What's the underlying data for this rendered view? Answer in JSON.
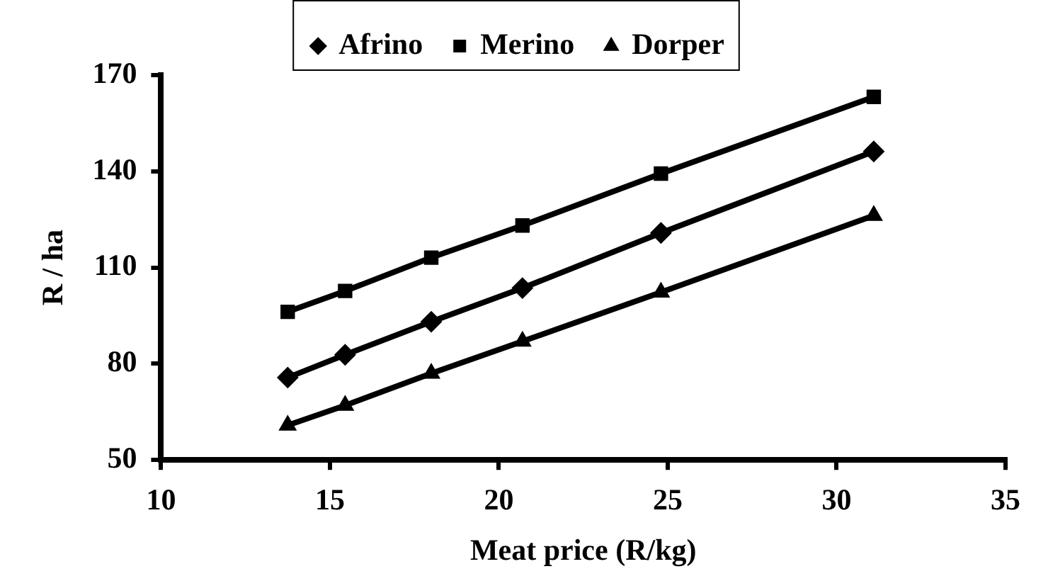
{
  "chart_data": {
    "type": "line",
    "xlabel": "Meat price (R/kg)",
    "ylabel": "R / ha",
    "xlim": [
      10,
      35
    ],
    "xticks": [
      10,
      15,
      20,
      25,
      30,
      35
    ],
    "ylim": [
      50,
      170
    ],
    "yticks": [
      50,
      80,
      110,
      140,
      170
    ],
    "x": [
      13.75,
      15.45,
      18,
      20.7,
      24.8,
      31.1
    ],
    "series": [
      {
        "name": "Afrino",
        "color": "#000000",
        "marker": "diamond",
        "values": [
          75.7,
          82.8,
          93.1,
          103.6,
          120.8,
          146.2
        ]
      },
      {
        "name": "Merino",
        "color": "#000000",
        "marker": "square",
        "values": [
          96.2,
          102.7,
          113.1,
          123.1,
          139.3,
          163.2
        ]
      },
      {
        "name": "Dorper",
        "color": "#000000",
        "marker": "triangle",
        "values": [
          60.8,
          67,
          77,
          87,
          102.3,
          126.2
        ]
      }
    ],
    "grid": false,
    "legend": "top",
    "line_style": "solid"
  }
}
